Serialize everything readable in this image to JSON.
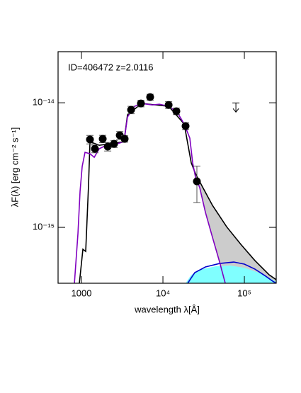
{
  "chart_data": {
    "type": "scatter",
    "annotation": "ID=406472 z=2.0116",
    "xlabel": "wavelength λ[Å]",
    "ylabel": "λF(λ) [erg cm⁻² s⁻¹]",
    "xscale": "log",
    "yscale": "log",
    "xlim": [
      516,
      246000
    ],
    "ylim": [
      3.56e-16,
      2.57e-14
    ],
    "xticks": [
      1000,
      {
        "value": 10000,
        "label": "10⁴"
      },
      {
        "value": 100000,
        "label": "10⁵"
      }
    ],
    "yticks": [
      {
        "value": 1e-15,
        "label": "10⁻¹⁵"
      },
      {
        "value": 1e-14,
        "label": "10⁻¹⁴"
      }
    ],
    "series": [
      {
        "type": "area",
        "color": "#80ffff",
        "x": [
          18970,
          22270,
          30060,
          44870,
          66990,
          100000,
          149200,
          222800,
          246000
        ],
        "values": [
          3.56e-16,
          4.16e-16,
          4.62e-16,
          4.87e-16,
          4.94e-16,
          4.74e-16,
          4.33e-16,
          3.8e-16,
          3.65e-16
        ]
      },
      {
        "type": "line",
        "color": "#0000cc",
        "x": [
          20140,
          24600,
          33240,
          49650,
          74130,
          100000,
          134900,
          182400,
          222800,
          246000
        ],
        "values": [
          3.56e-16,
          4.33e-16,
          4.81e-16,
          5.13e-16,
          5.27e-16,
          5.07e-16,
          4.62e-16,
          4.06e-16,
          3.7e-16,
          3.56e-16
        ]
      },
      {
        "type": "line",
        "color": "#000000",
        "x": [
          942,
          1041,
          1127,
          1222,
          1271,
          1649,
          3326,
          3673,
          5483,
          11750,
          18240,
          22270,
          25120,
          30060,
          40620,
          60650,
          90570,
          134900,
          201400,
          246000
        ],
        "values": [
          3.56e-16,
          6.67e-16,
          6.41e-16,
          2.22e-15,
          4.87e-15,
          4.56e-15,
          4.87e-15,
          8e-15,
          9.87e-15,
          9.37e-15,
          6.76e-15,
          3.29e-15,
          2.7e-15,
          2.16e-15,
          1.5e-15,
          1.01e-15,
          7.3e-16,
          5.41e-16,
          4.16e-16,
          3.8e-16
        ]
      },
      {
        "type": "line",
        "color": "#8000c0",
        "x": [
          819,
          905,
          961,
          1020,
          1105,
          1271,
          1434,
          1649,
          2014,
          2721,
          3326,
          3673,
          4487,
          5483,
          7413,
          9057,
          11750,
          14930,
          18240,
          21390,
          23190,
          25120,
          28310,
          33240,
          40620,
          49650,
          58240
        ],
        "values": [
          3.56e-16,
          8.9e-16,
          1.95e-15,
          3.08e-15,
          4e-15,
          3.9e-15,
          3.65e-15,
          4.27e-15,
          4.56e-15,
          4.68e-15,
          4.87e-15,
          7.69e-15,
          9.37e-15,
          9.87e-15,
          9.61e-15,
          9.74e-15,
          9.37e-15,
          8.43e-15,
          6.76e-15,
          5.2e-15,
          3.29e-15,
          2.53e-15,
          2.08e-15,
          1.32e-15,
          8.3e-16,
          5.27e-16,
          3.56e-16
        ]
      },
      {
        "type": "scatter",
        "color": "#000000",
        "x": [
          1271,
          1462,
          1823,
          2099,
          2512,
          2951,
          3390,
          4064,
          5370,
          6966,
          11750,
          14620,
          18970,
          26120
        ],
        "values": [
          5.07e-15,
          4.27e-15,
          5.13e-15,
          4.45e-15,
          4.68e-15,
          5.48e-15,
          5.13e-15,
          8.77e-15,
          9.87e-15,
          1.11e-14,
          9.6e-15,
          8.55e-15,
          6.5e-15,
          2.34e-15
        ],
        "yerr": [
          4e-16,
          3e-16,
          3.5e-16,
          3.5e-16,
          3e-16,
          4e-16,
          3e-16,
          6e-16,
          6e-16,
          6e-16,
          6e-16,
          5e-16,
          4e-16,
          7.6e-16
        ]
      }
    ],
    "fill_between": {
      "series": [
        2,
        3
      ],
      "xstart": 22270,
      "color": "#cccccc"
    },
    "upper_limits": {
      "x": [
        78700
      ],
      "values": [
        9.1e-15
      ]
    }
  }
}
